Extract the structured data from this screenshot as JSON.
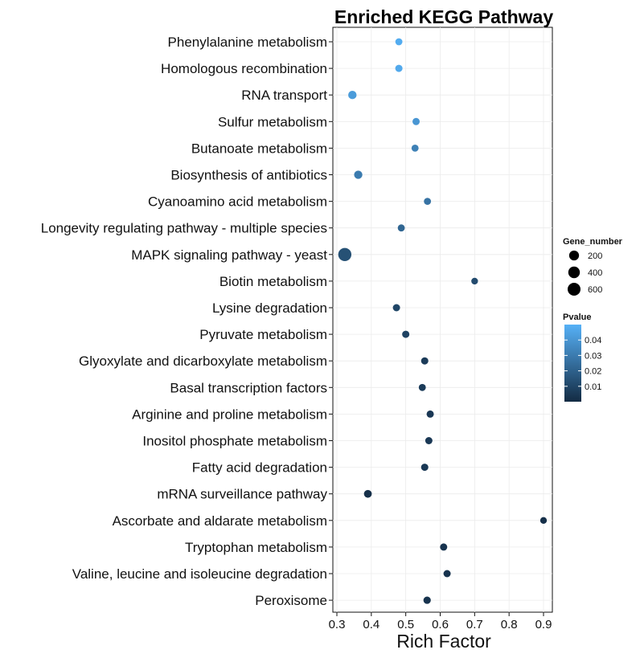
{
  "chart_data": {
    "type": "scatter",
    "title": "Enriched KEGG Pathway",
    "xlabel": "Rich Factor",
    "ylabel": "",
    "xlim": [
      0.29,
      0.93
    ],
    "xticks": [
      0.3,
      0.4,
      0.5,
      0.6,
      0.7,
      0.8,
      0.9
    ],
    "xtick_labels": [
      "0.3",
      "0.4",
      "0.5",
      "0.6",
      "0.7",
      "0.8",
      "0.9"
    ],
    "grid": true,
    "legend_position": "right",
    "categories": [
      "Phenylalanine metabolism",
      "Homologous recombination",
      "RNA transport",
      "Sulfur metabolism",
      "Butanoate metabolism",
      "Biosynthesis of antibiotics",
      "Cyanoamino acid metabolism",
      "Longevity regulating pathway - multiple species",
      "MAPK signaling pathway - yeast",
      "Biotin metabolism",
      "Lysine degradation",
      "Pyruvate metabolism",
      "Glyoxylate and dicarboxylate metabolism",
      "Basal transcription factors",
      "Arginine and proline metabolism",
      "Inositol phosphate metabolism",
      "Fatty acid degradation",
      "mRNA surveillance pathway",
      "Ascorbate and aldarate metabolism",
      "Tryptophan metabolism",
      "Valine, leucine and isoleucine degradation",
      "Peroxisome"
    ],
    "points": [
      {
        "pathway": "Phenylalanine metabolism",
        "rich_factor": 0.48,
        "gene_number": 20,
        "pvalue": 0.048
      },
      {
        "pathway": "Homologous recombination",
        "rich_factor": 0.48,
        "gene_number": 25,
        "pvalue": 0.047
      },
      {
        "pathway": "RNA transport",
        "rich_factor": 0.345,
        "gene_number": 80,
        "pvalue": 0.042
      },
      {
        "pathway": "Sulfur metabolism",
        "rich_factor": 0.53,
        "gene_number": 25,
        "pvalue": 0.04
      },
      {
        "pathway": "Butanoate metabolism",
        "rich_factor": 0.527,
        "gene_number": 20,
        "pvalue": 0.032
      },
      {
        "pathway": "Biosynthesis of antibiotics",
        "rich_factor": 0.362,
        "gene_number": 75,
        "pvalue": 0.03
      },
      {
        "pathway": "Cyanoamino acid metabolism",
        "rich_factor": 0.563,
        "gene_number": 20,
        "pvalue": 0.027
      },
      {
        "pathway": "Longevity regulating pathway - multiple species",
        "rich_factor": 0.487,
        "gene_number": 20,
        "pvalue": 0.022
      },
      {
        "pathway": "MAPK signaling pathway - yeast",
        "rich_factor": 0.323,
        "gene_number": 650,
        "pvalue": 0.014
      },
      {
        "pathway": "Biotin metabolism",
        "rich_factor": 0.7,
        "gene_number": 10,
        "pvalue": 0.012
      },
      {
        "pathway": "Lysine degradation",
        "rich_factor": 0.473,
        "gene_number": 25,
        "pvalue": 0.01
      },
      {
        "pathway": "Pyruvate metabolism",
        "rich_factor": 0.5,
        "gene_number": 25,
        "pvalue": 0.009
      },
      {
        "pathway": "Glyoxylate and dicarboxylate metabolism",
        "rich_factor": 0.555,
        "gene_number": 25,
        "pvalue": 0.006
      },
      {
        "pathway": "Basal transcription factors",
        "rich_factor": 0.548,
        "gene_number": 20,
        "pvalue": 0.006
      },
      {
        "pathway": "Arginine and proline metabolism",
        "rich_factor": 0.571,
        "gene_number": 25,
        "pvalue": 0.005
      },
      {
        "pathway": "Inositol phosphate metabolism",
        "rich_factor": 0.567,
        "gene_number": 25,
        "pvalue": 0.005
      },
      {
        "pathway": "Fatty acid degradation",
        "rich_factor": 0.555,
        "gene_number": 25,
        "pvalue": 0.005
      },
      {
        "pathway": "mRNA surveillance pathway",
        "rich_factor": 0.39,
        "gene_number": 50,
        "pvalue": 0.002
      },
      {
        "pathway": "Ascorbate and aldarate metabolism",
        "rich_factor": 0.9,
        "gene_number": 10,
        "pvalue": 0.002
      },
      {
        "pathway": "Tryptophan metabolism",
        "rich_factor": 0.61,
        "gene_number": 25,
        "pvalue": 0.003
      },
      {
        "pathway": "Valine, leucine and isoleucine degradation",
        "rich_factor": 0.62,
        "gene_number": 25,
        "pvalue": 0.003
      },
      {
        "pathway": "Peroxisome",
        "rich_factor": 0.562,
        "gene_number": 30,
        "pvalue": 0.003
      }
    ],
    "size_legend": {
      "title": "Gene_number",
      "values": [
        200,
        400,
        600
      ],
      "labels": [
        "200",
        "400",
        "600"
      ]
    },
    "color_legend": {
      "title": "Pvalue",
      "range": [
        0.0,
        0.05
      ],
      "ticks": [
        0.01,
        0.02,
        0.03,
        0.04
      ],
      "tick_labels": [
        "0.01",
        "0.02",
        "0.03",
        "0.04"
      ],
      "low_color": "#132b43",
      "high_color": "#56b1f7"
    }
  }
}
